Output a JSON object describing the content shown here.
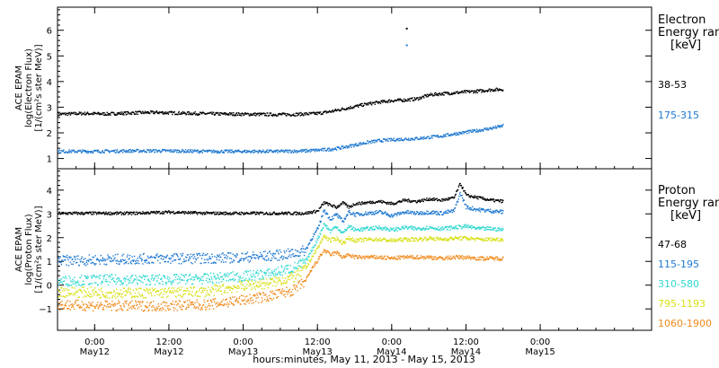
{
  "chart_data": {
    "type": "scatter",
    "x_axis": {
      "title": "hours:minutes, May 11, 2013 - May 15, 2013",
      "range_hours": [
        0,
        96
      ],
      "ticks": [
        {
          "t": 6,
          "time": "0:00",
          "date": "May12"
        },
        {
          "t": 18,
          "time": "12:00",
          "date": "May12"
        },
        {
          "t": 30,
          "time": "0:00",
          "date": "May13"
        },
        {
          "t": 42,
          "time": "12:00",
          "date": "May13"
        },
        {
          "t": 54,
          "time": "0:00",
          "date": "May14"
        },
        {
          "t": 66,
          "time": "12:00",
          "date": "May14"
        },
        {
          "t": 78,
          "time": "0:00",
          "date": "May15"
        }
      ]
    },
    "panels": [
      {
        "name": "electron",
        "ylabel": [
          "ACE EPAM",
          "log(Electron Flux)",
          "[1/(cm²s ster MeV)]"
        ],
        "ylim": [
          0.6,
          6.9
        ],
        "yticks": [
          1,
          2,
          3,
          4,
          5,
          6
        ],
        "legend_title": [
          "Electron",
          "Energy ranges",
          "[keV]"
        ],
        "series": [
          {
            "name": "38-53",
            "color": "#000000",
            "points": [
              [
                0,
                2.75
              ],
              [
                4,
                2.78
              ],
              [
                8,
                2.76
              ],
              [
                12,
                2.8
              ],
              [
                16,
                2.82
              ],
              [
                18,
                2.8
              ],
              [
                22,
                2.78
              ],
              [
                26,
                2.76
              ],
              [
                30,
                2.75
              ],
              [
                34,
                2.74
              ],
              [
                38,
                2.74
              ],
              [
                42,
                2.78
              ],
              [
                44,
                2.85
              ],
              [
                46,
                2.95
              ],
              [
                48,
                3.05
              ],
              [
                50,
                3.15
              ],
              [
                52,
                3.22
              ],
              [
                54,
                3.28
              ],
              [
                56,
                3.3
              ],
              [
                58,
                3.35
              ],
              [
                60,
                3.5
              ],
              [
                62,
                3.55
              ],
              [
                64,
                3.58
              ],
              [
                66,
                3.62
              ],
              [
                68,
                3.65
              ],
              [
                70,
                3.7
              ],
              [
                72,
                3.72
              ]
            ],
            "spikes": [
              [
                56.3,
                6.1
              ]
            ]
          },
          {
            "name": "175-315",
            "color": "#1e78d0",
            "points": [
              [
                0,
                1.3
              ],
              [
                6,
                1.3
              ],
              [
                12,
                1.32
              ],
              [
                18,
                1.32
              ],
              [
                24,
                1.3
              ],
              [
                30,
                1.3
              ],
              [
                36,
                1.3
              ],
              [
                40,
                1.32
              ],
              [
                44,
                1.38
              ],
              [
                46,
                1.45
              ],
              [
                48,
                1.55
              ],
              [
                50,
                1.65
              ],
              [
                52,
                1.72
              ],
              [
                54,
                1.75
              ],
              [
                56,
                1.78
              ],
              [
                58,
                1.8
              ],
              [
                60,
                1.85
              ],
              [
                62,
                1.9
              ],
              [
                64,
                1.98
              ],
              [
                66,
                2.05
              ],
              [
                68,
                2.12
              ],
              [
                70,
                2.2
              ],
              [
                72,
                2.3
              ]
            ],
            "spikes": [
              [
                56.3,
                5.45
              ]
            ]
          }
        ]
      },
      {
        "name": "proton",
        "ylabel": [
          "ACE EPAM",
          "log(Proton Flux)",
          "[1/(cm²s ster MeV)]"
        ],
        "ylim": [
          -1.9,
          4.9
        ],
        "yticks": [
          -1,
          0,
          1,
          2,
          3,
          4
        ],
        "legend_title": [
          "Proton",
          "Energy ranges",
          "[keV]"
        ],
        "series": [
          {
            "name": "47-68",
            "color": "#000000",
            "points": [
              [
                0,
                3.05
              ],
              [
                12,
                3.05
              ],
              [
                18,
                3.1
              ],
              [
                24,
                3.05
              ],
              [
                30,
                3.05
              ],
              [
                36,
                3.05
              ],
              [
                40,
                3.05
              ],
              [
                42,
                3.15
              ],
              [
                43,
                3.5
              ],
              [
                44,
                3.4
              ],
              [
                45,
                3.3
              ],
              [
                46,
                3.5
              ],
              [
                47,
                3.3
              ],
              [
                48,
                3.45
              ],
              [
                50,
                3.5
              ],
              [
                52,
                3.55
              ],
              [
                54,
                3.45
              ],
              [
                56,
                3.6
              ],
              [
                58,
                3.55
              ],
              [
                60,
                3.65
              ],
              [
                62,
                3.6
              ],
              [
                64,
                3.7
              ],
              [
                65,
                4.3
              ],
              [
                66,
                3.8
              ],
              [
                68,
                3.7
              ],
              [
                70,
                3.6
              ],
              [
                72,
                3.55
              ]
            ]
          },
          {
            "name": "115-195",
            "color": "#1e78d0",
            "points": [
              [
                0,
                1.05
              ],
              [
                8,
                1.1
              ],
              [
                16,
                1.15
              ],
              [
                24,
                1.15
              ],
              [
                30,
                1.2
              ],
              [
                34,
                1.25
              ],
              [
                38,
                1.35
              ],
              [
                40,
                1.5
              ],
              [
                41,
                2.0
              ],
              [
                42,
                2.4
              ],
              [
                43,
                3.2
              ],
              [
                44,
                2.8
              ],
              [
                45,
                3.0
              ],
              [
                46,
                2.7
              ],
              [
                47,
                3.1
              ],
              [
                48,
                3.0
              ],
              [
                50,
                3.05
              ],
              [
                52,
                3.1
              ],
              [
                54,
                2.95
              ],
              [
                56,
                3.1
              ],
              [
                58,
                3.05
              ],
              [
                60,
                3.1
              ],
              [
                62,
                3.05
              ],
              [
                64,
                3.15
              ],
              [
                65,
                3.9
              ],
              [
                66,
                3.3
              ],
              [
                68,
                3.2
              ],
              [
                70,
                3.15
              ],
              [
                72,
                3.1
              ]
            ]
          },
          {
            "name": "310-580",
            "color": "#30d8d0",
            "points": [
              [
                0,
                0.2
              ],
              [
                8,
                0.25
              ],
              [
                16,
                0.25
              ],
              [
                24,
                0.3
              ],
              [
                30,
                0.4
              ],
              [
                34,
                0.5
              ],
              [
                38,
                0.75
              ],
              [
                40,
                1.0
              ],
              [
                41,
                1.5
              ],
              [
                42,
                2.0
              ],
              [
                43,
                2.6
              ],
              [
                44,
                2.3
              ],
              [
                45,
                2.5
              ],
              [
                46,
                2.2
              ],
              [
                47,
                2.5
              ],
              [
                48,
                2.35
              ],
              [
                50,
                2.4
              ],
              [
                52,
                2.45
              ],
              [
                54,
                2.35
              ],
              [
                56,
                2.45
              ],
              [
                58,
                2.4
              ],
              [
                60,
                2.45
              ],
              [
                62,
                2.4
              ],
              [
                64,
                2.45
              ],
              [
                66,
                2.5
              ],
              [
                68,
                2.4
              ],
              [
                70,
                2.4
              ],
              [
                72,
                2.35
              ]
            ]
          },
          {
            "name": "795-1193",
            "color": "#d8e018",
            "points": [
              [
                0,
                -0.25
              ],
              [
                8,
                -0.3
              ],
              [
                16,
                -0.3
              ],
              [
                24,
                -0.25
              ],
              [
                30,
                0.0
              ],
              [
                34,
                0.1
              ],
              [
                38,
                0.35
              ],
              [
                40,
                0.7
              ],
              [
                41,
                1.2
              ],
              [
                42,
                1.6
              ],
              [
                43,
                2.1
              ],
              [
                44,
                1.9
              ],
              [
                45,
                2.0
              ],
              [
                46,
                1.8
              ],
              [
                47,
                2.0
              ],
              [
                48,
                1.9
              ],
              [
                50,
                1.95
              ],
              [
                52,
                1.95
              ],
              [
                54,
                1.9
              ],
              [
                56,
                1.95
              ],
              [
                58,
                1.95
              ],
              [
                60,
                2.0
              ],
              [
                62,
                1.95
              ],
              [
                64,
                2.0
              ],
              [
                66,
                2.0
              ],
              [
                68,
                1.95
              ],
              [
                70,
                1.95
              ],
              [
                72,
                1.95
              ]
            ]
          },
          {
            "name": "1060-1900",
            "color": "#f08a1c",
            "points": [
              [
                0,
                -0.8
              ],
              [
                8,
                -0.85
              ],
              [
                16,
                -0.85
              ],
              [
                24,
                -0.8
              ],
              [
                30,
                -0.6
              ],
              [
                34,
                -0.45
              ],
              [
                38,
                -0.2
              ],
              [
                40,
                0.2
              ],
              [
                41,
                0.7
              ],
              [
                42,
                1.1
              ],
              [
                43,
                1.5
              ],
              [
                44,
                1.3
              ],
              [
                45,
                1.4
              ],
              [
                46,
                1.2
              ],
              [
                47,
                1.3
              ],
              [
                48,
                1.2
              ],
              [
                50,
                1.2
              ],
              [
                52,
                1.2
              ],
              [
                54,
                1.15
              ],
              [
                56,
                1.2
              ],
              [
                58,
                1.2
              ],
              [
                60,
                1.2
              ],
              [
                62,
                1.15
              ],
              [
                64,
                1.2
              ],
              [
                66,
                1.2
              ],
              [
                68,
                1.15
              ],
              [
                70,
                1.15
              ],
              [
                72,
                1.15
              ]
            ]
          }
        ]
      }
    ]
  }
}
